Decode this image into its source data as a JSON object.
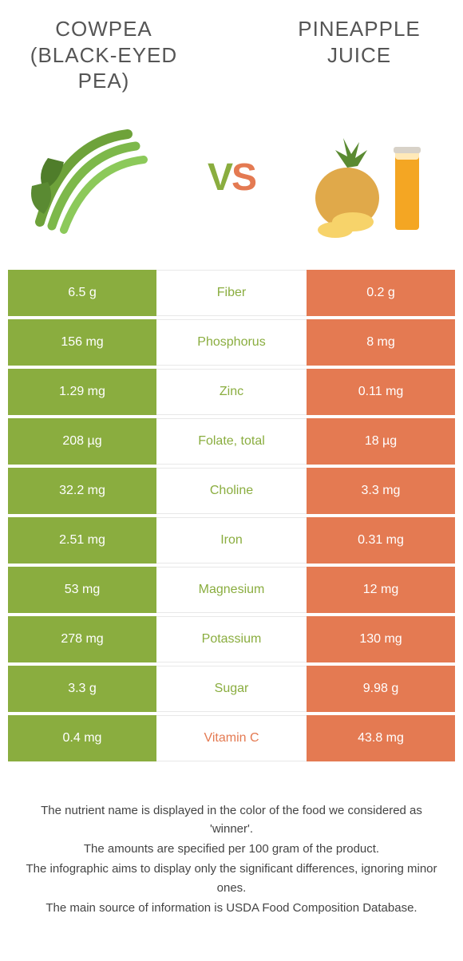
{
  "colors": {
    "left": "#8aad3f",
    "right": "#e47a52",
    "title": "#555555",
    "footnote": "#444444"
  },
  "header": {
    "left_title_line1": "COWPEA",
    "left_title_line2": "(BLACK-EYED",
    "left_title_line3": "PEA)",
    "right_title_line1": "PINEAPPLE",
    "right_title_line2": "JUICE",
    "vs_v": "V",
    "vs_s": "S"
  },
  "rows": [
    {
      "left": "6.5 g",
      "label": "Fiber",
      "right": "0.2 g",
      "winner": "left"
    },
    {
      "left": "156 mg",
      "label": "Phosphorus",
      "right": "8 mg",
      "winner": "left"
    },
    {
      "left": "1.29 mg",
      "label": "Zinc",
      "right": "0.11 mg",
      "winner": "left"
    },
    {
      "left": "208 µg",
      "label": "Folate, total",
      "right": "18 µg",
      "winner": "left"
    },
    {
      "left": "32.2 mg",
      "label": "Choline",
      "right": "3.3 mg",
      "winner": "left"
    },
    {
      "left": "2.51 mg",
      "label": "Iron",
      "right": "0.31 mg",
      "winner": "left"
    },
    {
      "left": "53 mg",
      "label": "Magnesium",
      "right": "12 mg",
      "winner": "left"
    },
    {
      "left": "278 mg",
      "label": "Potassium",
      "right": "130 mg",
      "winner": "left"
    },
    {
      "left": "3.3 g",
      "label": "Sugar",
      "right": "9.98 g",
      "winner": "left"
    },
    {
      "left": "0.4 mg",
      "label": "Vitamin C",
      "right": "43.8 mg",
      "winner": "right"
    }
  ],
  "footnotes": [
    "The nutrient name is displayed in the color of the food we considered as 'winner'.",
    "The amounts are specified per 100 gram of the product.",
    "The infographic aims to display only the significant differences, ignoring minor ones.",
    "The main source of information is USDA Food Composition Database."
  ]
}
